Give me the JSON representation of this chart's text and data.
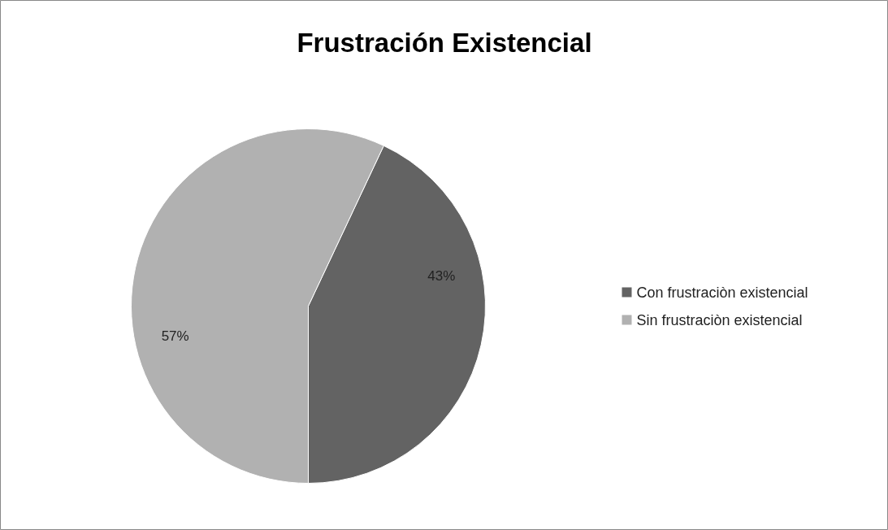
{
  "chart_data": {
    "type": "pie",
    "title": "Frustración Existencial",
    "categories": [
      "Con frustraciòn existencial",
      "Sin frustraciòn existencial"
    ],
    "values": [
      43,
      57
    ],
    "colors": [
      "#636363",
      "#b1b1b1"
    ],
    "value_labels": [
      "43%",
      "57%"
    ],
    "legend": "right"
  }
}
